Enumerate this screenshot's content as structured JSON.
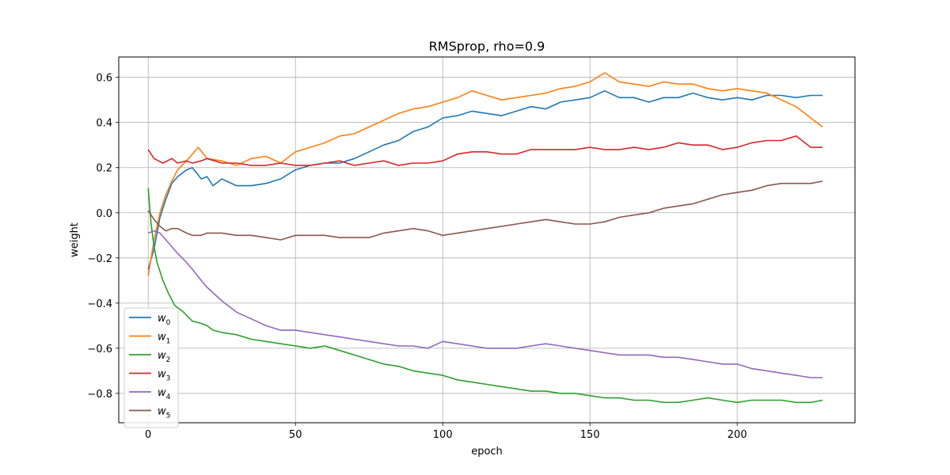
{
  "chart_data": {
    "type": "line",
    "title": "RMSprop, rho=0.9",
    "xlabel": "epoch",
    "ylabel": "weight",
    "xlim": [
      -10,
      240
    ],
    "ylim": [
      -0.93,
      0.69
    ],
    "xticks": [
      0,
      50,
      100,
      150,
      200
    ],
    "yticks": [
      -0.8,
      -0.6,
      -0.4,
      -0.2,
      0.0,
      0.2,
      0.4,
      0.6
    ],
    "xtick_labels": [
      "0",
      "50",
      "100",
      "150",
      "200"
    ],
    "ytick_labels": [
      "−0.8",
      "−0.6",
      "−0.4",
      "−0.2",
      "0.0",
      "0.2",
      "0.4",
      "0.6"
    ],
    "grid": true,
    "legend_position": "lower-left",
    "series": [
      {
        "name": "w",
        "sub": "0",
        "color": "#1f77b4",
        "x": [
          0,
          2,
          4,
          6,
          8,
          10,
          13,
          15,
          18,
          20,
          22,
          25,
          30,
          35,
          40,
          45,
          50,
          55,
          60,
          65,
          70,
          75,
          80,
          85,
          90,
          95,
          100,
          105,
          110,
          115,
          120,
          125,
          130,
          135,
          140,
          145,
          150,
          155,
          160,
          165,
          170,
          175,
          180,
          185,
          190,
          195,
          200,
          205,
          210,
          215,
          220,
          225,
          229
        ],
        "y": [
          -0.25,
          -0.16,
          -0.02,
          0.06,
          0.13,
          0.16,
          0.19,
          0.2,
          0.15,
          0.16,
          0.12,
          0.15,
          0.12,
          0.12,
          0.13,
          0.15,
          0.19,
          0.21,
          0.22,
          0.22,
          0.24,
          0.27,
          0.3,
          0.32,
          0.36,
          0.38,
          0.42,
          0.43,
          0.45,
          0.44,
          0.43,
          0.45,
          0.47,
          0.46,
          0.49,
          0.5,
          0.51,
          0.54,
          0.51,
          0.51,
          0.49,
          0.51,
          0.51,
          0.53,
          0.51,
          0.5,
          0.51,
          0.5,
          0.52,
          0.52,
          0.51,
          0.52,
          0.52
        ]
      },
      {
        "name": "w",
        "sub": "1",
        "color": "#ff7f0e",
        "x": [
          0,
          2,
          4,
          6,
          8,
          10,
          13,
          15,
          17,
          20,
          25,
          30,
          35,
          40,
          45,
          50,
          55,
          60,
          65,
          70,
          75,
          80,
          85,
          90,
          95,
          100,
          105,
          110,
          115,
          120,
          125,
          130,
          135,
          140,
          145,
          150,
          155,
          160,
          165,
          170,
          175,
          180,
          185,
          190,
          195,
          200,
          205,
          210,
          215,
          220,
          225,
          229
        ],
        "y": [
          -0.28,
          -0.12,
          0.0,
          0.08,
          0.14,
          0.19,
          0.23,
          0.26,
          0.29,
          0.24,
          0.23,
          0.21,
          0.24,
          0.25,
          0.22,
          0.27,
          0.29,
          0.31,
          0.34,
          0.35,
          0.38,
          0.41,
          0.44,
          0.46,
          0.47,
          0.49,
          0.51,
          0.54,
          0.52,
          0.5,
          0.51,
          0.52,
          0.53,
          0.55,
          0.56,
          0.58,
          0.62,
          0.58,
          0.57,
          0.56,
          0.58,
          0.57,
          0.57,
          0.55,
          0.54,
          0.55,
          0.54,
          0.53,
          0.5,
          0.47,
          0.42,
          0.38
        ]
      },
      {
        "name": "w",
        "sub": "2",
        "color": "#2ca02c",
        "x": [
          0,
          1,
          2,
          3,
          5,
          7,
          9,
          12,
          15,
          18,
          20,
          22,
          25,
          30,
          35,
          40,
          45,
          50,
          55,
          60,
          65,
          70,
          75,
          80,
          85,
          90,
          95,
          100,
          105,
          110,
          115,
          120,
          125,
          130,
          135,
          140,
          145,
          150,
          155,
          160,
          165,
          170,
          175,
          180,
          185,
          190,
          195,
          200,
          205,
          210,
          215,
          220,
          225,
          229
        ],
        "y": [
          0.11,
          -0.05,
          -0.15,
          -0.22,
          -0.3,
          -0.36,
          -0.41,
          -0.44,
          -0.48,
          -0.49,
          -0.5,
          -0.52,
          -0.53,
          -0.54,
          -0.56,
          -0.57,
          -0.58,
          -0.59,
          -0.6,
          -0.59,
          -0.61,
          -0.63,
          -0.65,
          -0.67,
          -0.68,
          -0.7,
          -0.71,
          -0.72,
          -0.74,
          -0.75,
          -0.76,
          -0.77,
          -0.78,
          -0.79,
          -0.79,
          -0.8,
          -0.8,
          -0.81,
          -0.82,
          -0.82,
          -0.83,
          -0.83,
          -0.84,
          -0.84,
          -0.83,
          -0.82,
          -0.83,
          -0.84,
          -0.83,
          -0.83,
          -0.83,
          -0.84,
          -0.84,
          -0.83
        ]
      },
      {
        "name": "w",
        "sub": "3",
        "color": "#d62728",
        "x": [
          0,
          2,
          5,
          8,
          10,
          13,
          15,
          18,
          20,
          25,
          30,
          35,
          40,
          45,
          50,
          55,
          60,
          65,
          70,
          75,
          80,
          85,
          90,
          95,
          100,
          105,
          110,
          115,
          120,
          125,
          130,
          135,
          140,
          145,
          150,
          155,
          160,
          165,
          170,
          175,
          180,
          185,
          190,
          195,
          200,
          205,
          210,
          215,
          220,
          225,
          229
        ],
        "y": [
          0.28,
          0.24,
          0.22,
          0.24,
          0.22,
          0.23,
          0.22,
          0.23,
          0.24,
          0.22,
          0.22,
          0.21,
          0.21,
          0.22,
          0.21,
          0.21,
          0.22,
          0.23,
          0.21,
          0.22,
          0.23,
          0.21,
          0.22,
          0.22,
          0.23,
          0.26,
          0.27,
          0.27,
          0.26,
          0.26,
          0.28,
          0.28,
          0.28,
          0.28,
          0.29,
          0.28,
          0.28,
          0.29,
          0.28,
          0.29,
          0.31,
          0.3,
          0.3,
          0.28,
          0.29,
          0.31,
          0.32,
          0.32,
          0.34,
          0.29,
          0.29
        ]
      },
      {
        "name": "w",
        "sub": "4",
        "color": "#9467bd",
        "x": [
          0,
          2,
          4,
          6,
          8,
          10,
          13,
          15,
          18,
          20,
          25,
          30,
          35,
          40,
          45,
          50,
          55,
          60,
          65,
          70,
          75,
          80,
          85,
          90,
          95,
          100,
          105,
          110,
          115,
          120,
          125,
          130,
          135,
          140,
          145,
          150,
          155,
          160,
          165,
          170,
          175,
          180,
          185,
          190,
          195,
          200,
          205,
          210,
          215,
          220,
          225,
          229
        ],
        "y": [
          -0.09,
          -0.08,
          -0.09,
          -0.12,
          -0.15,
          -0.18,
          -0.22,
          -0.25,
          -0.3,
          -0.33,
          -0.39,
          -0.44,
          -0.47,
          -0.5,
          -0.52,
          -0.52,
          -0.53,
          -0.54,
          -0.55,
          -0.56,
          -0.57,
          -0.58,
          -0.59,
          -0.59,
          -0.6,
          -0.57,
          -0.58,
          -0.59,
          -0.6,
          -0.6,
          -0.6,
          -0.59,
          -0.58,
          -0.59,
          -0.6,
          -0.61,
          -0.62,
          -0.63,
          -0.63,
          -0.63,
          -0.64,
          -0.64,
          -0.65,
          -0.66,
          -0.67,
          -0.67,
          -0.69,
          -0.7,
          -0.71,
          -0.72,
          -0.73,
          -0.73
        ]
      },
      {
        "name": "w",
        "sub": "5",
        "color": "#8c564b",
        "x": [
          0,
          2,
          4,
          6,
          8,
          10,
          13,
          15,
          18,
          20,
          25,
          30,
          35,
          40,
          45,
          50,
          55,
          60,
          65,
          70,
          75,
          80,
          85,
          90,
          95,
          100,
          105,
          110,
          115,
          120,
          125,
          130,
          135,
          140,
          145,
          150,
          155,
          160,
          165,
          170,
          175,
          180,
          185,
          190,
          195,
          200,
          205,
          210,
          215,
          220,
          225,
          229
        ],
        "y": [
          0.01,
          -0.03,
          -0.06,
          -0.08,
          -0.07,
          -0.07,
          -0.09,
          -0.1,
          -0.1,
          -0.09,
          -0.09,
          -0.1,
          -0.1,
          -0.11,
          -0.12,
          -0.1,
          -0.1,
          -0.1,
          -0.11,
          -0.11,
          -0.11,
          -0.09,
          -0.08,
          -0.07,
          -0.08,
          -0.1,
          -0.09,
          -0.08,
          -0.07,
          -0.06,
          -0.05,
          -0.04,
          -0.03,
          -0.04,
          -0.05,
          -0.05,
          -0.04,
          -0.02,
          -0.01,
          0.0,
          0.02,
          0.03,
          0.04,
          0.06,
          0.08,
          0.09,
          0.1,
          0.12,
          0.13,
          0.13,
          0.13,
          0.14
        ]
      }
    ]
  }
}
